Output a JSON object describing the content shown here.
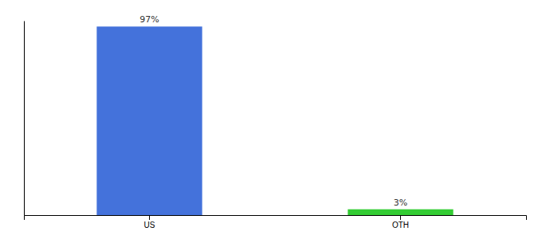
{
  "chart_data": {
    "type": "bar",
    "categories": [
      "US",
      "OTH"
    ],
    "values": [
      97,
      3
    ],
    "colors": [
      "#4472db",
      "#33cc33"
    ],
    "ylim": [
      0,
      100
    ],
    "data_labels": true,
    "value_labels": [
      "97%",
      "3%"
    ],
    "tick_labels": "x"
  }
}
